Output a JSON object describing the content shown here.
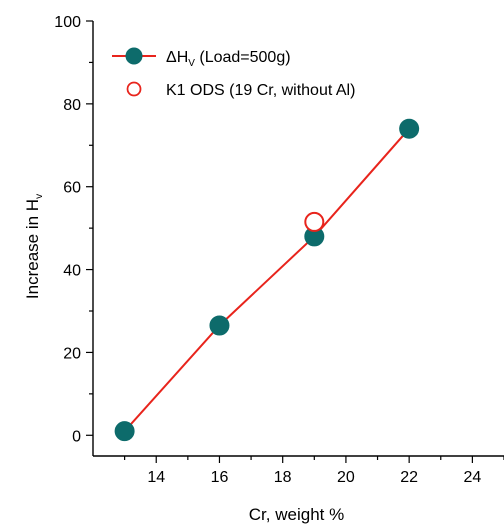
{
  "chart_data": {
    "type": "scatter",
    "xlabel": "Cr, weight %",
    "ylabel_main": "Increase in H",
    "ylabel_sub": "v",
    "xlim": [
      12,
      25
    ],
    "ylim": [
      -5,
      100
    ],
    "x_ticks": [
      14,
      16,
      18,
      20,
      22,
      24
    ],
    "y_ticks": [
      0,
      20,
      40,
      60,
      80,
      100
    ],
    "grid": false,
    "legend_position": "top-left",
    "series": [
      {
        "name": "ΔH",
        "name_sub": "V",
        "name_suffix": " (Load=500g)",
        "color": "#0d6b6b",
        "line_color": "#e8241c",
        "marker": "filled-circle",
        "x": [
          13,
          16,
          19,
          22
        ],
        "y": [
          1,
          26.5,
          48,
          74
        ]
      },
      {
        "name": "K1 ODS (19 Cr, without Al)",
        "color": "#e8241c",
        "marker": "open-circle",
        "x": [
          19
        ],
        "y": [
          51.5
        ]
      }
    ]
  }
}
